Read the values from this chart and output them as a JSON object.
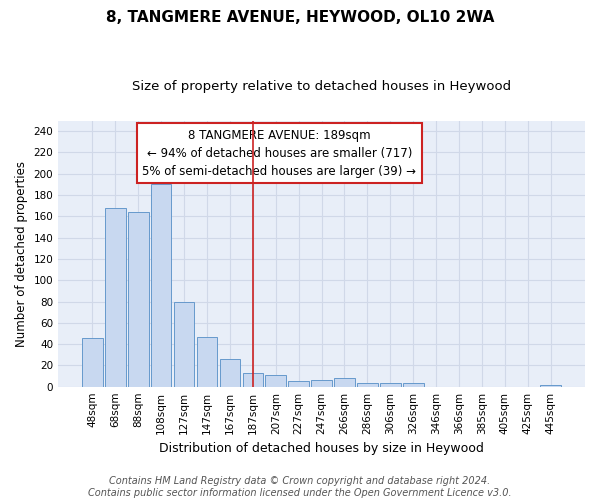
{
  "title": "8, TANGMERE AVENUE, HEYWOOD, OL10 2WA",
  "subtitle": "Size of property relative to detached houses in Heywood",
  "xlabel": "Distribution of detached houses by size in Heywood",
  "ylabel": "Number of detached properties",
  "footer_line1": "Contains HM Land Registry data © Crown copyright and database right 2024.",
  "footer_line2": "Contains public sector information licensed under the Open Government Licence v3.0.",
  "categories": [
    "48sqm",
    "68sqm",
    "88sqm",
    "108sqm",
    "127sqm",
    "147sqm",
    "167sqm",
    "187sqm",
    "207sqm",
    "227sqm",
    "247sqm",
    "266sqm",
    "286sqm",
    "306sqm",
    "326sqm",
    "346sqm",
    "366sqm",
    "385sqm",
    "405sqm",
    "425sqm",
    "445sqm"
  ],
  "values": [
    46,
    168,
    164,
    190,
    80,
    47,
    26,
    13,
    11,
    5,
    6,
    8,
    3,
    3,
    3,
    0,
    0,
    0,
    0,
    0,
    2
  ],
  "bar_color": "#c8d8f0",
  "bar_edge_color": "#6699cc",
  "vline_x": 7,
  "vline_color": "#cc2222",
  "annotation_title": "8 TANGMERE AVENUE: 189sqm",
  "annotation_line1": "← 94% of detached houses are smaller (717)",
  "annotation_line2": "5% of semi-detached houses are larger (39) →",
  "annotation_box_color": "#cc2222",
  "ylim": [
    0,
    250
  ],
  "yticks": [
    0,
    20,
    40,
    60,
    80,
    100,
    120,
    140,
    160,
    180,
    200,
    220,
    240
  ],
  "plot_bg_color": "#e8eef8",
  "fig_bg_color": "#ffffff",
  "grid_color": "#d0d8e8",
  "title_fontsize": 11,
  "subtitle_fontsize": 9.5,
  "ylabel_fontsize": 8.5,
  "xlabel_fontsize": 9,
  "tick_fontsize": 7.5,
  "footer_fontsize": 7,
  "annot_fontsize": 8.5
}
